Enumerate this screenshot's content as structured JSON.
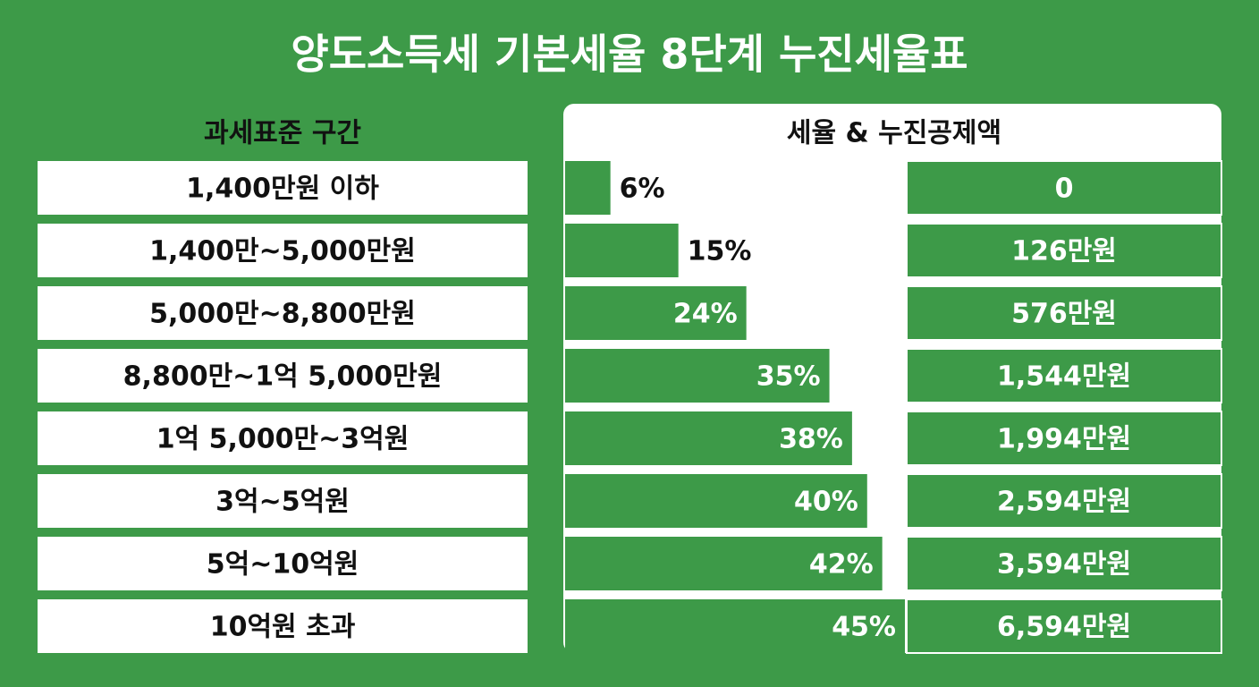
{
  "chart_data": {
    "type": "bar",
    "title": "양도소득세 기본세율 8단계 누진세율표",
    "category_header": "과세표준 구간",
    "value_header": "세율 & 누진공제액",
    "categories": [
      "1,400만원 이하",
      "1,400만~5,000만원",
      "5,000만~8,800만원",
      "8,800만~1억 5,000만원",
      "1억 5,000만~3억원",
      "3억~5억원",
      "5억~10억원",
      "10억원 초과"
    ],
    "values": [
      6,
      15,
      24,
      35,
      38,
      40,
      42,
      45
    ],
    "value_labels": [
      "6%",
      "15%",
      "24%",
      "35%",
      "38%",
      "40%",
      "42%",
      "45%"
    ],
    "deductions": [
      "0",
      "126만원",
      "576만원",
      "1,544만원",
      "1,994만원",
      "2,594만원",
      "3,594만원",
      "6,594만원"
    ],
    "color": "#3d9a48"
  }
}
